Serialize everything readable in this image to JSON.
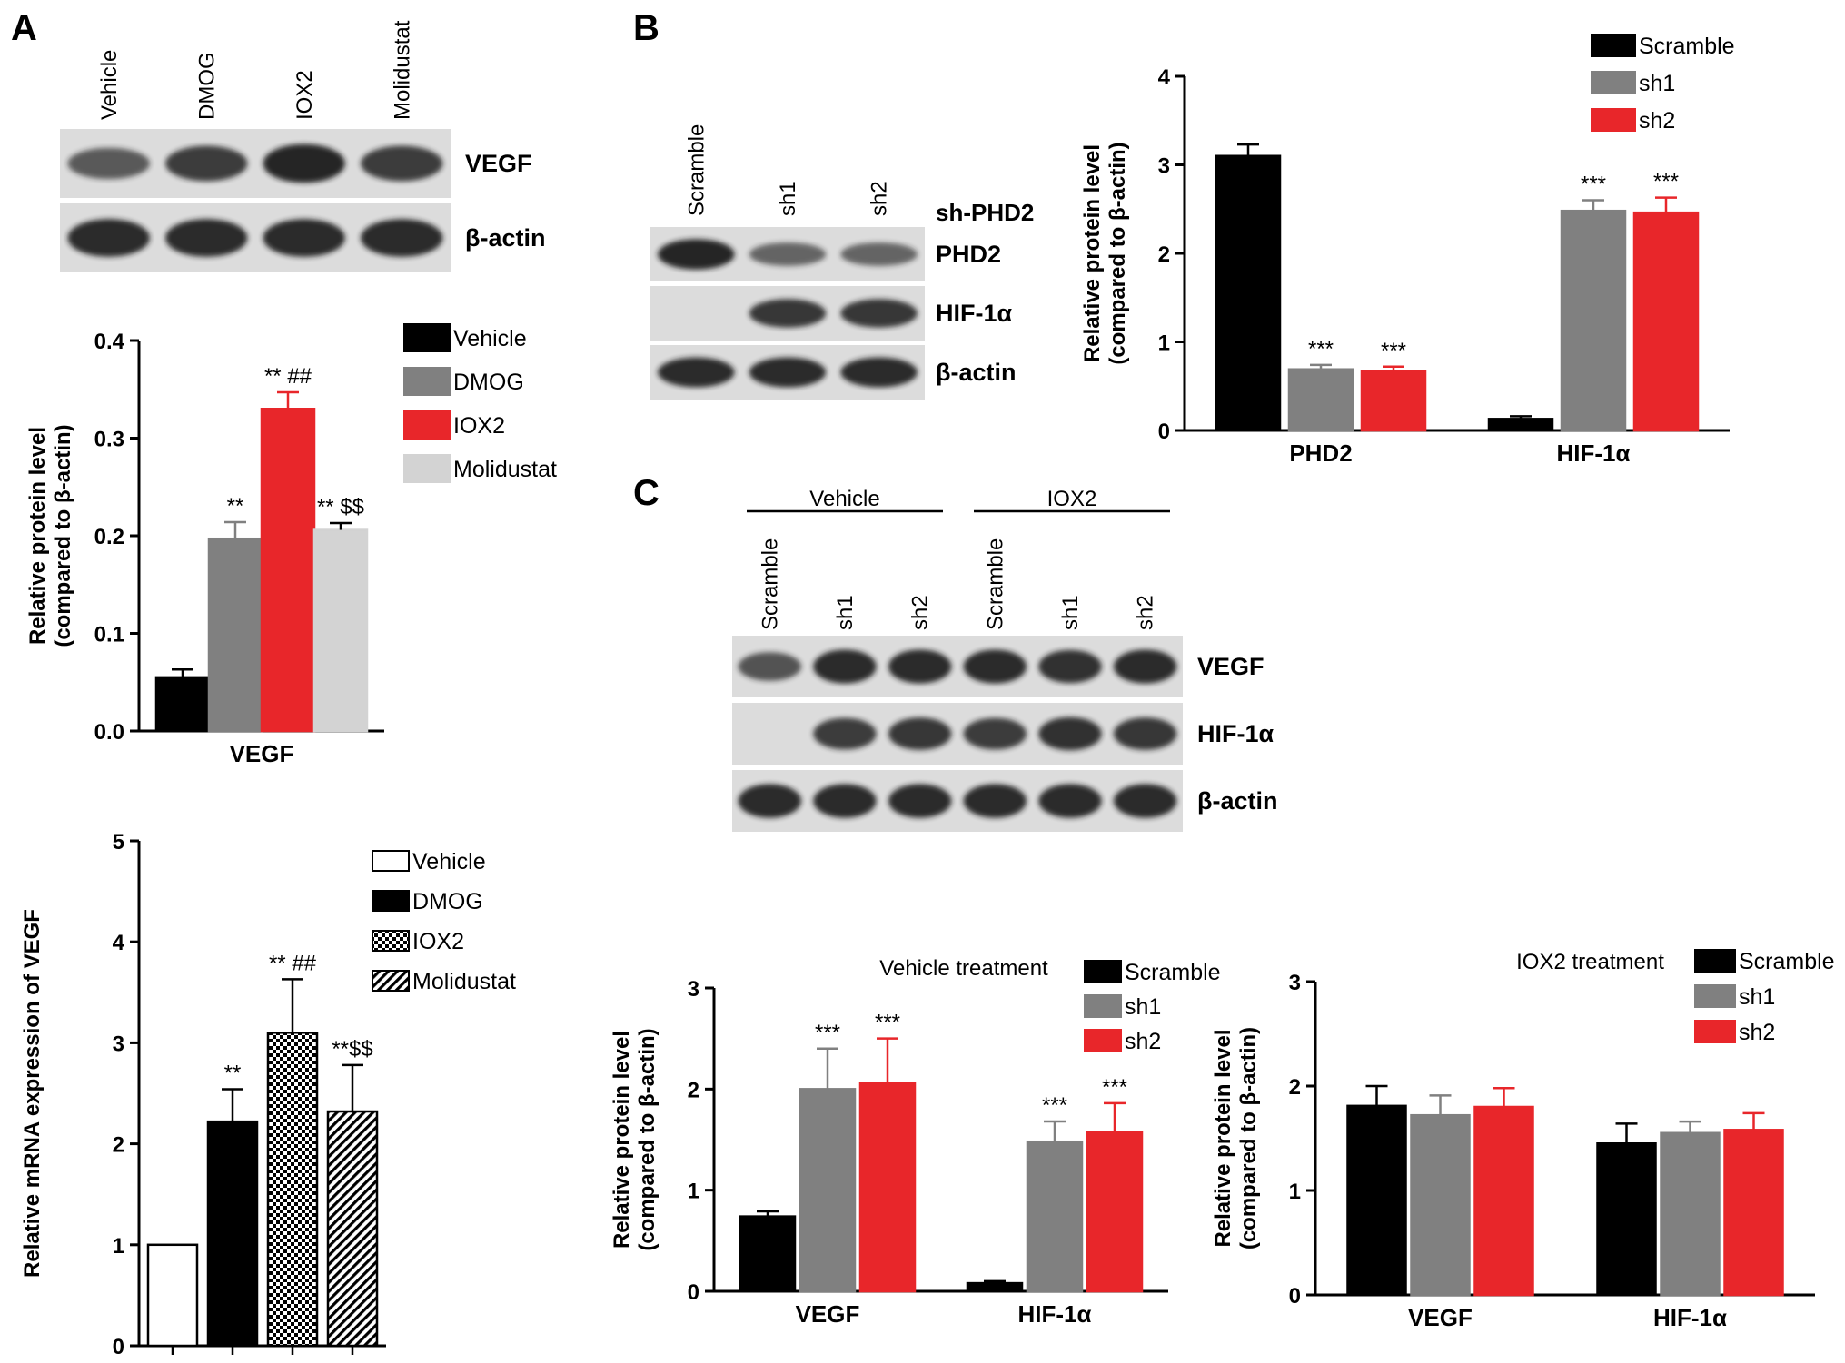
{
  "panels": {
    "A": "A",
    "B": "B",
    "C": "C"
  },
  "colors": {
    "black": "#000000",
    "gray": "#808080",
    "red": "#e8262a",
    "light_gray": "#d3d3d3",
    "white": "#ffffff",
    "blot_bg": "#dcdcdc",
    "blot_band": "#1a1a1a"
  },
  "blots": {
    "A": {
      "lanes": [
        "Vehicle",
        "DMOG",
        "IOX2",
        "Molidustat"
      ],
      "rows": [
        {
          "label": "VEGF",
          "intensity": [
            0.55,
            0.8,
            1.0,
            0.8
          ]
        },
        {
          "label": "β-actin",
          "intensity": [
            0.95,
            0.95,
            0.95,
            0.95
          ]
        }
      ]
    },
    "B": {
      "lanes": [
        "Scramble",
        "sh1",
        "sh2"
      ],
      "header": "sh-PHD2",
      "rows": [
        {
          "label": "PHD2",
          "intensity": [
            1.0,
            0.45,
            0.45
          ]
        },
        {
          "label": "HIF-1α",
          "intensity": [
            0.0,
            0.85,
            0.85
          ]
        },
        {
          "label": "β-actin",
          "intensity": [
            0.95,
            0.95,
            0.95
          ]
        }
      ]
    },
    "C": {
      "groups": [
        "Vehicle",
        "IOX2"
      ],
      "lanes": [
        "Scramble",
        "sh1",
        "sh2",
        "Scramble",
        "sh1",
        "sh2"
      ],
      "rows": [
        {
          "label": "VEGF",
          "intensity": [
            0.6,
            0.95,
            0.95,
            0.95,
            0.9,
            0.95
          ]
        },
        {
          "label": "HIF-1α",
          "intensity": [
            0.0,
            0.8,
            0.85,
            0.8,
            0.9,
            0.85
          ]
        },
        {
          "label": "β-actin",
          "intensity": [
            0.95,
            0.95,
            0.95,
            0.95,
            0.95,
            0.95
          ]
        }
      ]
    }
  },
  "chart_data": [
    {
      "id": "A-protein",
      "type": "bar",
      "ylabel": "Relative protein level\n(compared to β-actin)",
      "ylim": [
        0,
        0.4
      ],
      "yticks": [
        "0.0",
        "0.1",
        "0.2",
        "0.3",
        "0.4"
      ],
      "categories": [
        "VEGF"
      ],
      "series": [
        {
          "name": "Vehicle",
          "values": [
            0.055
          ],
          "errors": [
            0.008
          ],
          "color": "#000000",
          "fill": "solid",
          "annotation": [
            ""
          ]
        },
        {
          "name": "DMOG",
          "values": [
            0.197
          ],
          "errors": [
            0.017
          ],
          "color": "#808080",
          "fill": "solid",
          "annotation": [
            "**"
          ]
        },
        {
          "name": "IOX2",
          "values": [
            0.33
          ],
          "errors": [
            0.017
          ],
          "color": "#e8262a",
          "fill": "solid",
          "annotation": [
            "** ##"
          ]
        },
        {
          "name": "Molidustat",
          "values": [
            0.206
          ],
          "errors": [
            0.007
          ],
          "color": "#d3d3d3",
          "fill": "solid",
          "annotation": [
            "** $$"
          ]
        }
      ]
    },
    {
      "id": "A-mrna",
      "type": "bar",
      "ylabel": "Relative mRNA expression of VEGF",
      "ylim": [
        0,
        5
      ],
      "yticks": [
        "0",
        "1",
        "2",
        "3",
        "4",
        "5"
      ],
      "categories": [
        ""
      ],
      "series": [
        {
          "name": "Vehicle",
          "values": [
            1.0
          ],
          "errors": [
            0
          ],
          "color": "#ffffff",
          "fill": "solid",
          "annotation": [
            ""
          ]
        },
        {
          "name": "DMOG",
          "values": [
            2.22
          ],
          "errors": [
            0.32
          ],
          "color": "#000000",
          "fill": "solid",
          "annotation": [
            "**"
          ]
        },
        {
          "name": "IOX2",
          "values": [
            3.1
          ],
          "errors": [
            0.53
          ],
          "color": "#000000",
          "fill": "checker",
          "annotation": [
            "** ##"
          ]
        },
        {
          "name": "Molidustat",
          "values": [
            2.32
          ],
          "errors": [
            0.46
          ],
          "color": "#000000",
          "fill": "hatch",
          "annotation": [
            "**$$"
          ]
        }
      ]
    },
    {
      "id": "B-protein",
      "type": "bar",
      "ylabel": "Relative protein level\n(compared to β-actin)",
      "ylim": [
        0,
        4
      ],
      "yticks": [
        "0",
        "1",
        "2",
        "3",
        "4"
      ],
      "categories": [
        "PHD2",
        "HIF-1α"
      ],
      "series": [
        {
          "name": "Scramble",
          "values": [
            3.1,
            0.13
          ],
          "errors": [
            0.13,
            0.03
          ],
          "color": "#000000",
          "fill": "solid",
          "annotation": [
            "",
            ""
          ]
        },
        {
          "name": "sh1",
          "values": [
            0.69,
            2.48
          ],
          "errors": [
            0.05,
            0.12
          ],
          "color": "#808080",
          "fill": "solid",
          "annotation": [
            "***",
            "***"
          ]
        },
        {
          "name": "sh2",
          "values": [
            0.67,
            2.46
          ],
          "errors": [
            0.05,
            0.17
          ],
          "color": "#e8262a",
          "fill": "solid",
          "annotation": [
            "***",
            "***"
          ]
        }
      ]
    },
    {
      "id": "C-vehicle",
      "type": "bar",
      "title": "Vehicle treatment",
      "ylabel": "Relative protein level\n(compared to β-actin)",
      "ylim": [
        0,
        3
      ],
      "yticks": [
        "0",
        "1",
        "2",
        "3"
      ],
      "categories": [
        "VEGF",
        "HIF-1α"
      ],
      "series": [
        {
          "name": "Scramble",
          "values": [
            0.74,
            0.08
          ],
          "errors": [
            0.05,
            0.02
          ],
          "color": "#000000",
          "fill": "solid",
          "annotation": [
            "",
            ""
          ]
        },
        {
          "name": "sh1",
          "values": [
            2.0,
            1.48
          ],
          "errors": [
            0.4,
            0.2
          ],
          "color": "#808080",
          "fill": "solid",
          "annotation": [
            "***",
            "***"
          ]
        },
        {
          "name": "sh2",
          "values": [
            2.06,
            1.57
          ],
          "errors": [
            0.44,
            0.29
          ],
          "color": "#e8262a",
          "fill": "solid",
          "annotation": [
            "***",
            "***"
          ]
        }
      ]
    },
    {
      "id": "C-iox2",
      "type": "bar",
      "title": "IOX2 treatment",
      "ylabel": "Relative protein level\n(compared to β-actin)",
      "ylim": [
        0,
        3
      ],
      "yticks": [
        "0",
        "1",
        "2",
        "3"
      ],
      "categories": [
        "VEGF",
        "HIF-1α"
      ],
      "series": [
        {
          "name": "Scramble",
          "values": [
            1.81,
            1.45
          ],
          "errors": [
            0.19,
            0.19
          ],
          "color": "#000000",
          "fill": "solid",
          "annotation": [
            "",
            ""
          ]
        },
        {
          "name": "sh1",
          "values": [
            1.72,
            1.55
          ],
          "errors": [
            0.19,
            0.11
          ],
          "color": "#808080",
          "fill": "solid",
          "annotation": [
            "",
            ""
          ]
        },
        {
          "name": "sh2",
          "values": [
            1.8,
            1.58
          ],
          "errors": [
            0.18,
            0.16
          ],
          "color": "#e8262a",
          "fill": "solid",
          "annotation": [
            "",
            ""
          ]
        }
      ]
    }
  ]
}
